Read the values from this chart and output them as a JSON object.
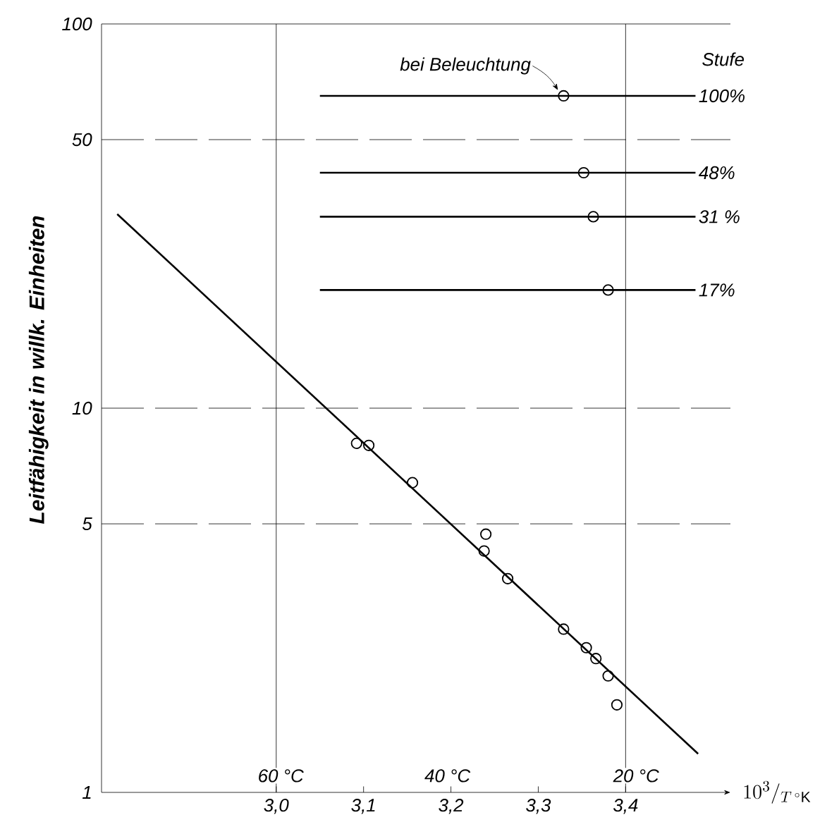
{
  "chart_data": {
    "type": "scatter",
    "xlabel": "10^{3}/_{T\\,{}^{\\circ}\\mathrm{K}}",
    "ylabel": "Leitfähigkeit in willk. Einheiten",
    "log": "y",
    "xlim": [
      2.8,
      3.52
    ],
    "ylim": [
      1,
      100
    ],
    "xticks": [
      {
        "value": 3.0,
        "label": "3,0"
      },
      {
        "value": 3.1,
        "label": "3,1"
      },
      {
        "value": 3.2,
        "label": "3,2"
      },
      {
        "value": 3.3,
        "label": "3,3"
      },
      {
        "value": 3.4,
        "label": "3,4"
      }
    ],
    "yticks": [
      1,
      5,
      10,
      50,
      100
    ],
    "ref_lines": [
      {
        "axis": "y",
        "value": 100,
        "line_style": "solid"
      },
      {
        "axis": "y",
        "value": 50,
        "line_style": "dashed"
      },
      {
        "axis": "y",
        "value": 10,
        "line_style": "dashed"
      },
      {
        "axis": "y",
        "value": 5,
        "line_style": "dashed"
      },
      {
        "axis": "x",
        "value": 3.0,
        "line_style": "solid"
      },
      {
        "axis": "x",
        "value": 3.4,
        "line_style": "solid"
      }
    ],
    "annotations": [
      "Stufe",
      {
        "text": "bei Beleuchtung",
        "x": 3.329,
        "y": 65
      },
      "60 °C",
      "40 °C",
      "20 °C"
    ],
    "series": [
      {
        "type": "line",
        "color": "#000000",
        "marker": "none",
        "x": [
          2.818,
          3.483
        ],
        "values": [
          32,
          1.26
        ]
      },
      {
        "type": "scatter",
        "color": "#000000",
        "marker": "circle",
        "x": [
          3.092,
          3.106,
          3.156,
          3.24,
          3.238,
          3.265,
          3.329,
          3.355,
          3.366,
          3.38,
          3.39
        ],
        "values": [
          8.1,
          8.0,
          6.4,
          4.7,
          4.25,
          3.6,
          2.66,
          2.38,
          2.23,
          2.01,
          1.69
        ]
      },
      {
        "type": "line",
        "name": "100%",
        "color": "#000000",
        "marker": "none",
        "x": [
          3.05,
          3.48
        ],
        "values": [
          65,
          65
        ]
      },
      {
        "type": "line",
        "name": "48%",
        "color": "#000000",
        "marker": "none",
        "x": [
          3.05,
          3.48
        ],
        "values": [
          41,
          41
        ]
      },
      {
        "type": "line",
        "name": "31 %",
        "color": "#000000",
        "marker": "none",
        "x": [
          3.05,
          3.48
        ],
        "values": [
          31.5,
          31.5
        ]
      },
      {
        "type": "line",
        "name": "17%",
        "color": "#000000",
        "marker": "none",
        "x": [
          3.05,
          3.48
        ],
        "values": [
          20.3,
          20.3
        ]
      },
      {
        "type": "scatter",
        "color": "#000000",
        "marker": "circle",
        "x": [
          3.329,
          3.352,
          3.363,
          3.38
        ],
        "values": [
          65,
          41,
          31.5,
          20.3
        ]
      }
    ]
  }
}
